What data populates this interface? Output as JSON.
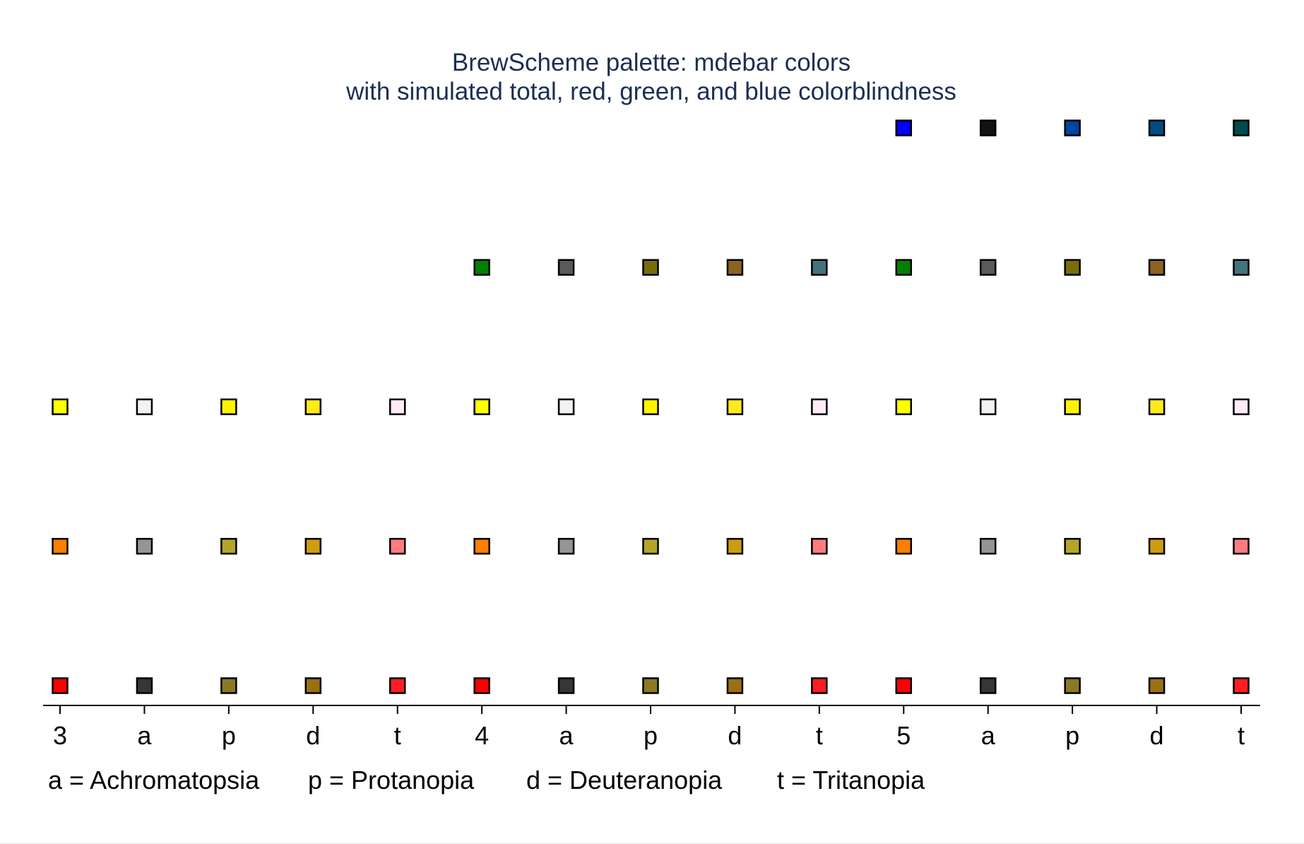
{
  "chart_data": {
    "type": "scatter",
    "title": "BrewScheme palette: mdebar colors",
    "subtitle": "with simulated total, red, green, and blue colorblindness",
    "xlabel": "",
    "ylabel": "",
    "grid": false,
    "x_tick_labels": [
      "3",
      "a",
      "p",
      "d",
      "t",
      "4",
      "a",
      "p",
      "d",
      "t",
      "5",
      "a",
      "p",
      "d",
      "t"
    ],
    "notes": [
      "a = Achromatopsia",
      "p = Protanopia",
      "d = Deuteranopia",
      "t = Tritanopia"
    ],
    "marker_outline": "#000000",
    "background": "#ffffff",
    "ylim": [
      1,
      5
    ],
    "columns": [
      {
        "x": 1,
        "label": "3",
        "colors": [
          "#ff0000",
          "#ff7f00",
          "#ffff00"
        ]
      },
      {
        "x": 2,
        "label": "a",
        "colors": [
          "#363636",
          "#959595",
          "#f2f2f2"
        ]
      },
      {
        "x": 3,
        "label": "p",
        "colors": [
          "#8b7a22",
          "#b4a42a",
          "#fff300"
        ]
      },
      {
        "x": 4,
        "label": "d",
        "colors": [
          "#9b7014",
          "#cd9c12",
          "#ffea1e"
        ]
      },
      {
        "x": 5,
        "label": "t",
        "colors": [
          "#ff1e22",
          "#ff7b80",
          "#ffecf6"
        ]
      },
      {
        "x": 6,
        "label": "4",
        "colors": [
          "#ff0000",
          "#ff7f00",
          "#ffff00",
          "#008000"
        ]
      },
      {
        "x": 7,
        "label": "a",
        "colors": [
          "#363636",
          "#959595",
          "#f2f2f2",
          "#5a5a5a"
        ]
      },
      {
        "x": 8,
        "label": "p",
        "colors": [
          "#8b7a22",
          "#b4a42a",
          "#fff300",
          "#7a6c0a"
        ]
      },
      {
        "x": 9,
        "label": "d",
        "colors": [
          "#9b7014",
          "#cd9c12",
          "#ffea1e",
          "#8b6420"
        ]
      },
      {
        "x": 10,
        "label": "t",
        "colors": [
          "#ff1e22",
          "#ff7b80",
          "#ffecf6",
          "#43747e"
        ]
      },
      {
        "x": 11,
        "label": "5",
        "colors": [
          "#ff0000",
          "#ff7f00",
          "#ffff00",
          "#008000",
          "#0000ff"
        ]
      },
      {
        "x": 12,
        "label": "a",
        "colors": [
          "#363636",
          "#959595",
          "#f2f2f2",
          "#5a5a5a",
          "#121212"
        ]
      },
      {
        "x": 13,
        "label": "p",
        "colors": [
          "#8b7a22",
          "#b4a42a",
          "#fff300",
          "#7a6c0a",
          "#0045a0"
        ]
      },
      {
        "x": 14,
        "label": "d",
        "colors": [
          "#9b7014",
          "#cd9c12",
          "#ffea1e",
          "#8b6420",
          "#004d82"
        ]
      },
      {
        "x": 15,
        "label": "t",
        "colors": [
          "#ff1e22",
          "#ff7b80",
          "#ffecf6",
          "#43747e",
          "#004c4c"
        ]
      }
    ]
  }
}
